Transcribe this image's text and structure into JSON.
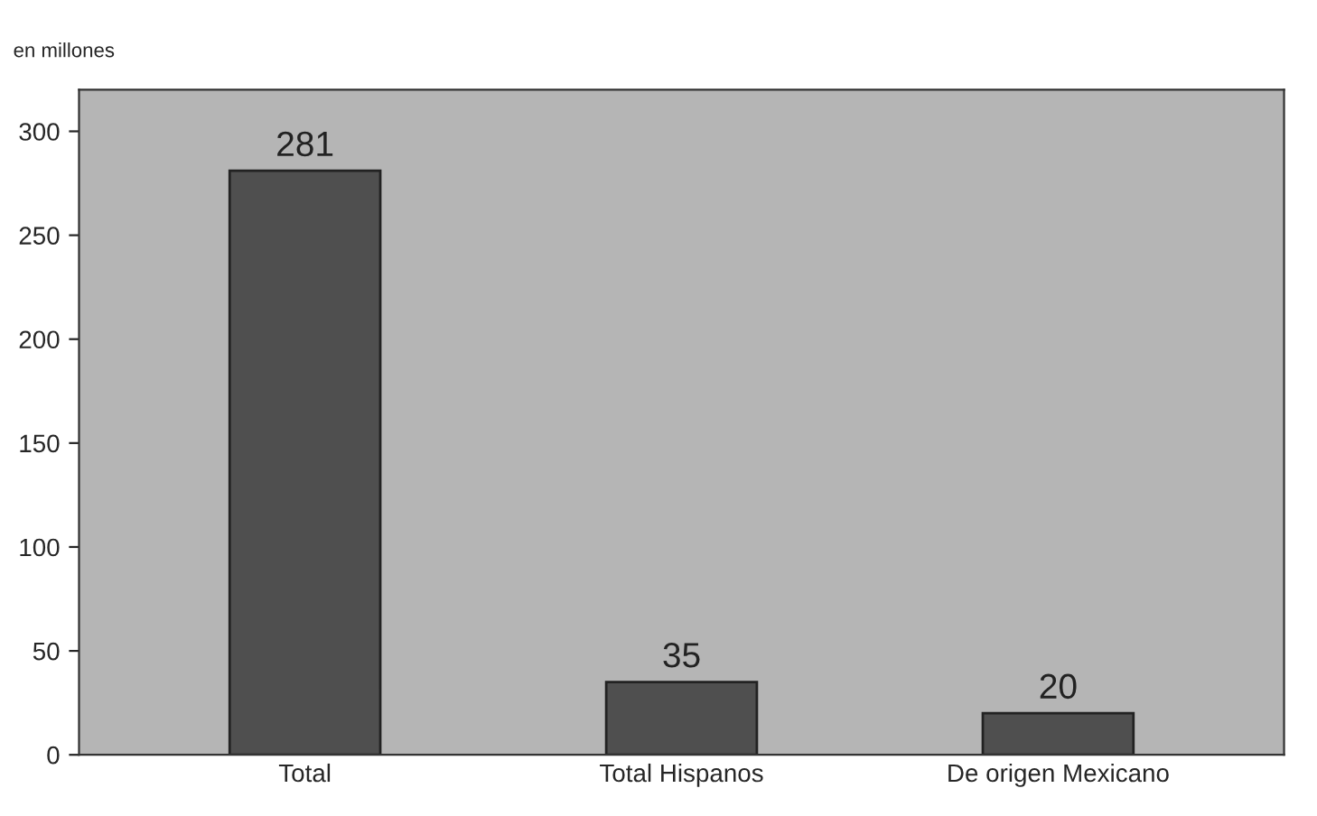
{
  "chart_data": {
    "type": "bar",
    "subtitle": "en millones",
    "categories": [
      "Total",
      "Total Hispanos",
      "De origen Mexicano"
    ],
    "values": [
      281,
      35,
      20
    ],
    "color": "#4f4f4f",
    "ylim": [
      0,
      320
    ],
    "yticks": [
      0,
      50,
      100,
      150,
      200,
      250,
      300
    ],
    "data_labels": true,
    "grid": false
  }
}
